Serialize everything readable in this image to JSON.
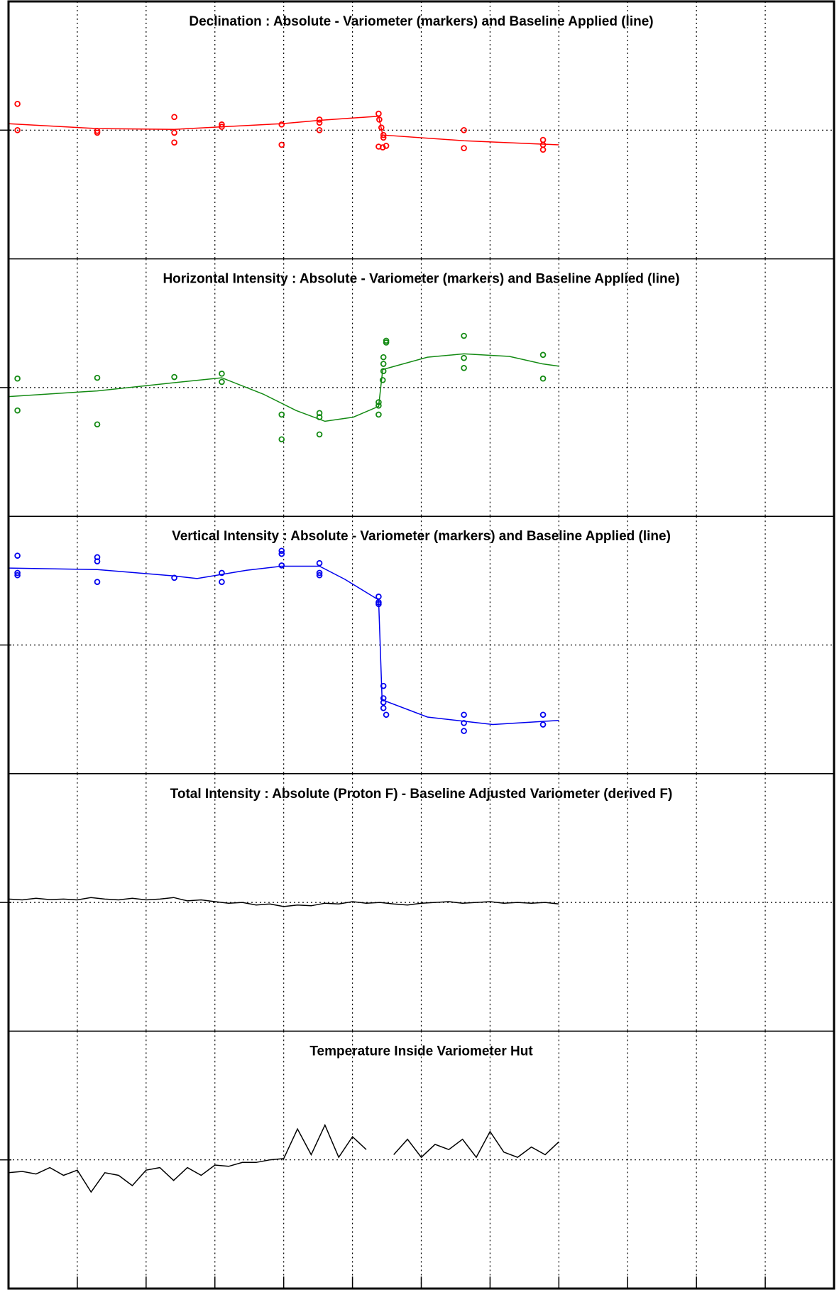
{
  "chart_data": [
    {
      "type": "scatter",
      "title": "Declination : Absolute - Variometer (markers) and Baseline Applied (line)",
      "xlim": [
        0,
        12
      ],
      "xticks": [
        1,
        2,
        3,
        4,
        5,
        6,
        7,
        8,
        9,
        10,
        11
      ],
      "ylim": [
        -5,
        5
      ],
      "yticks": [
        0
      ],
      "grid": true,
      "series": [
        {
          "kind": "markers",
          "color": "#ff0000",
          "x": [
            0.13,
            0.13,
            1.29,
            1.29,
            2.41,
            2.41,
            2.41,
            3.1,
            3.1,
            3.97,
            3.97,
            4.52,
            4.52,
            4.52,
            5.38,
            5.39,
            5.42,
            5.45,
            5.45,
            5.38,
            5.44,
            5.49,
            6.62,
            6.62,
            7.77,
            7.77,
            7.77
          ],
          "values": [
            1.02,
            0,
            -0.03,
            -0.1,
            0.51,
            -0.1,
            -0.48,
            0.22,
            0.13,
            0.22,
            -0.57,
            0.41,
            0.29,
            0,
            0.64,
            0.41,
            0.1,
            -0.19,
            -0.29,
            -0.64,
            -0.67,
            -0.61,
            0,
            -0.7,
            -0.38,
            -0.57,
            -0.76
          ]
        },
        {
          "kind": "line",
          "color": "#ff0000",
          "x": [
            0,
            1.29,
            2.41,
            3.1,
            3.97,
            4.52,
            5.38,
            5.44,
            6.62,
            8
          ],
          "values": [
            0.25,
            0.06,
            0.03,
            0.13,
            0.25,
            0.38,
            0.54,
            -0.19,
            -0.41,
            -0.57
          ]
        }
      ]
    },
    {
      "type": "scatter",
      "title": "Horizontal Intensity : Absolute - Variometer (markers) and Baseline Applied (line)",
      "xlim": [
        0,
        12
      ],
      "xticks": [
        1,
        2,
        3,
        4,
        5,
        6,
        7,
        8,
        9,
        10,
        11
      ],
      "ylim": [
        -5,
        5
      ],
      "yticks": [
        0
      ],
      "grid": true,
      "series": [
        {
          "kind": "markers",
          "color": "#138a13",
          "x": [
            0.13,
            0.13,
            1.29,
            1.29,
            2.41,
            3.1,
            3.1,
            3.97,
            3.97,
            4.52,
            4.52,
            4.52,
            5.38,
            5.38,
            5.38,
            5.44,
            5.45,
            5.45,
            5.45,
            5.49,
            5.49,
            6.62,
            6.62,
            6.62,
            7.77,
            7.77
          ],
          "values": [
            0.35,
            -0.89,
            0.38,
            -1.43,
            0.41,
            0.54,
            0.22,
            -1.05,
            -2.01,
            -0.99,
            -1.15,
            -1.82,
            -0.57,
            -0.7,
            -1.05,
            0.29,
            0.64,
            0.92,
            1.18,
            1.75,
            1.82,
            2.01,
            1.15,
            0.76,
            1.27,
            0.35
          ]
        },
        {
          "kind": "line",
          "color": "#138a13",
          "x": [
            0,
            1.29,
            2.41,
            3.1,
            3.7,
            4.18,
            4.6,
            5.01,
            5.38,
            5.44,
            6.09,
            6.62,
            7.28,
            7.76,
            8
          ],
          "values": [
            -0.35,
            -0.13,
            0.19,
            0.38,
            -0.25,
            -0.89,
            -1.31,
            -1.15,
            -0.73,
            0.7,
            1.18,
            1.31,
            1.21,
            0.92,
            0.83
          ]
        }
      ]
    },
    {
      "type": "scatter",
      "title": "Vertical Intensity : Absolute - Variometer (markers) and Baseline Applied (line)",
      "xlim": [
        0,
        12
      ],
      "xticks": [
        1,
        2,
        3,
        4,
        5,
        6,
        7,
        8,
        9,
        10,
        11
      ],
      "ylim": [
        -5,
        5
      ],
      "yticks": [
        0
      ],
      "grid": true,
      "series": [
        {
          "kind": "markers",
          "color": "#0000ee",
          "x": [
            0.13,
            0.13,
            0.13,
            1.29,
            1.29,
            1.29,
            2.41,
            3.1,
            3.1,
            3.97,
            3.97,
            3.97,
            4.52,
            4.52,
            4.52,
            5.38,
            5.38,
            5.38,
            5.45,
            5.45,
            5.45,
            5.45,
            5.49,
            6.62,
            6.62,
            6.62,
            7.77,
            7.77
          ],
          "values": [
            3.47,
            2.8,
            2.71,
            3.41,
            3.25,
            2.45,
            2.61,
            2.8,
            2.45,
            3.66,
            3.54,
            3.09,
            3.18,
            2.8,
            2.71,
            1.88,
            1.66,
            1.59,
            -1.59,
            -2.07,
            -2.23,
            -2.45,
            -2.71,
            -2.71,
            -3.03,
            -3.34,
            -2.71,
            -3.09
          ]
        },
        {
          "kind": "line",
          "color": "#0000ee",
          "x": [
            0,
            1.29,
            2.41,
            2.74,
            3.46,
            3.97,
            4.52,
            4.89,
            5.38,
            5.43,
            6.09,
            7.04,
            8
          ],
          "values": [
            2.99,
            2.93,
            2.68,
            2.58,
            2.9,
            3.06,
            3.06,
            2.55,
            1.75,
            -2.13,
            -2.8,
            -3.09,
            -2.93
          ]
        }
      ]
    },
    {
      "type": "line",
      "title": "Total Intensity : Absolute (Proton F) - Baseline Adjusted Variometer (derived F)",
      "xlim": [
        0,
        12
      ],
      "xticks": [
        1,
        2,
        3,
        4,
        5,
        6,
        7,
        8,
        9,
        10,
        11
      ],
      "ylim": [
        -5,
        5
      ],
      "yticks": [
        0
      ],
      "grid": true,
      "series": [
        {
          "kind": "line",
          "color": "#000000",
          "x": [
            0,
            0.2,
            0.4,
            0.6,
            0.8,
            1,
            1.2,
            1.4,
            1.6,
            1.8,
            2,
            2.2,
            2.4,
            2.6,
            2.8,
            3,
            3.2,
            3.4,
            3.6,
            3.8,
            4,
            4.2,
            4.4,
            4.6,
            4.8,
            5,
            5.2,
            5.4,
            5.6,
            5.8,
            6,
            6.2,
            6.4,
            6.6,
            6.8,
            7,
            7.2,
            7.4,
            7.6,
            7.8,
            8
          ],
          "values": [
            0.13,
            0.1,
            0.16,
            0.11,
            0.13,
            0.1,
            0.19,
            0.13,
            0.1,
            0.16,
            0.1,
            0.13,
            0.19,
            0.06,
            0.1,
            0.03,
            -0.03,
            0,
            -0.1,
            -0.06,
            -0.16,
            -0.1,
            -0.13,
            -0.03,
            -0.06,
            0.03,
            -0.03,
            0,
            -0.06,
            -0.1,
            -0.03,
            0,
            0.03,
            -0.03,
            0,
            0.03,
            -0.03,
            0,
            -0.03,
            0,
            -0.06
          ]
        }
      ]
    },
    {
      "type": "line",
      "title": "Temperature Inside Variometer Hut",
      "xlim": [
        0,
        12
      ],
      "xticks": [
        1,
        2,
        3,
        4,
        5,
        6,
        7,
        8,
        9,
        10,
        11
      ],
      "ylim": [
        -5,
        5
      ],
      "yticks": [
        0
      ],
      "grid": true,
      "series": [
        {
          "kind": "line",
          "color": "#000000",
          "x": [
            0,
            0.2,
            0.4,
            0.6,
            0.8,
            1,
            1.2,
            1.4,
            1.6,
            1.8,
            2,
            2.2,
            2.4,
            2.6,
            2.8,
            3,
            3.2,
            3.4,
            3.6,
            3.8,
            4,
            4.2,
            4.4,
            4.6,
            4.8,
            5,
            5.2,
            5.4,
            5.6,
            5.8,
            6,
            6.2,
            6.4,
            6.6,
            6.8,
            7,
            7.2,
            7.4,
            7.6,
            7.8,
            8
          ],
          "values": [
            -0.5,
            -0.45,
            -0.55,
            -0.3,
            -0.6,
            -0.4,
            -1.25,
            -0.5,
            -0.6,
            -1,
            -0.4,
            -0.3,
            -0.8,
            -0.3,
            -0.6,
            -0.2,
            -0.25,
            -0.1,
            -0.1,
            0,
            0.05,
            1.2,
            0.2,
            1.35,
            0.1,
            0.9,
            0.4,
            null,
            0.2,
            0.8,
            0.1,
            0.6,
            0.4,
            0.8,
            0.1,
            1.1,
            0.3,
            0.1,
            0.5,
            0.2,
            0.7
          ]
        }
      ]
    }
  ]
}
